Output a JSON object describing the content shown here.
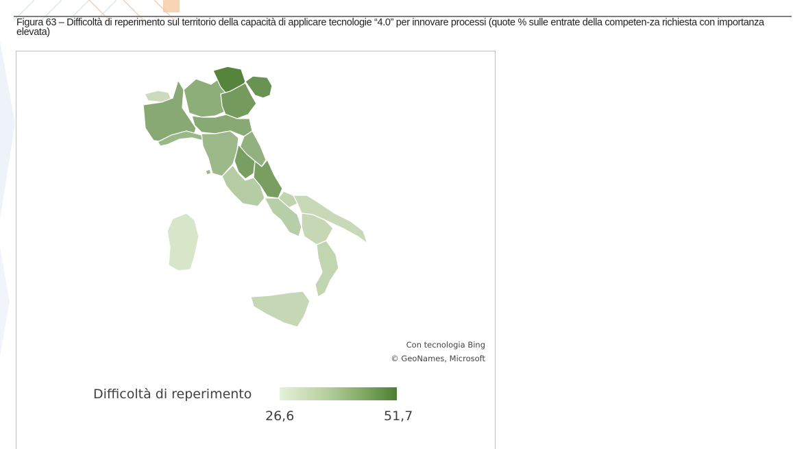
{
  "caption": "Figura 63 – Difficoltà di reperimento sul territorio della capacità di applicare tecnologie “4.0” per innovare processi (quote % sulle entrate della competen-za richiesta con importanza elevata)",
  "attribution": {
    "line1": "Con tecnologia Bing",
    "line2": "© GeoNames, Microsoft"
  },
  "legend": {
    "title": "Difficoltà di reperimento",
    "min_label": "26,6",
    "max_label": "51,7",
    "min_value": 26.6,
    "max_value": 51.7,
    "color_low": "#e6f0d9",
    "color_high": "#4e7e34"
  },
  "map": {
    "shading": "choropleth by region, green scale",
    "relative_shades": {
      "trentino-alto-adige": 0.95,
      "friuli-venezia-giulia": 0.82,
      "veneto": 0.75,
      "umbria": 0.72,
      "abruzzo": 0.72,
      "piemonte": 0.62,
      "lombardia": 0.58,
      "emilia-romagna": 0.62,
      "marche": 0.55,
      "toscana": 0.48,
      "liguria": 0.5,
      "lazio": 0.32,
      "molise": 0.25,
      "campania": 0.3,
      "basilicata": 0.22,
      "puglia": 0.2,
      "calabria": 0.24,
      "sicilia": 0.22,
      "sardegna": 0.1,
      "valle-d-aosta": 0.18
    }
  }
}
